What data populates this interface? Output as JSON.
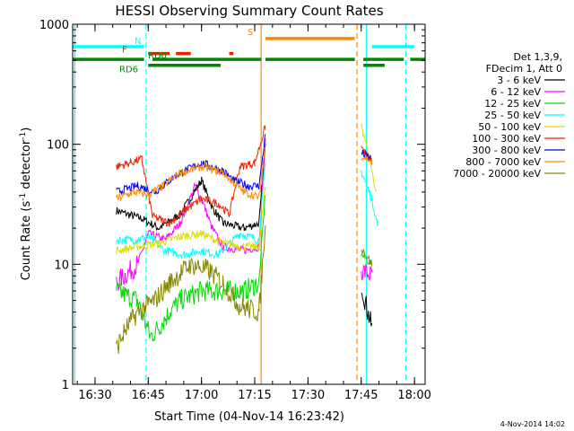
{
  "chart_data": {
    "type": "line",
    "title": "HESSI Observing Summary Count Rates",
    "xlabel": "Start Time (04-Nov-14 16:23:42)",
    "ylabel_main": "Count Rate (s",
    "ylabel_sup1": "-1",
    "ylabel_mid": " detector",
    "ylabel_sup2": "-1",
    "ylabel_end": ")",
    "yscale": "log",
    "ylim": [
      1,
      1000
    ],
    "xlim": [
      16.395,
      18.05
    ],
    "x_ticks": [
      {
        "v": 16.5,
        "label": "16:30"
      },
      {
        "v": 16.75,
        "label": "16:45"
      },
      {
        "v": 17.0,
        "label": "17:00"
      },
      {
        "v": 17.25,
        "label": "17:15"
      },
      {
        "v": 17.5,
        "label": "17:30"
      },
      {
        "v": 17.75,
        "label": "17:45"
      },
      {
        "v": 18.0,
        "label": "18:00"
      }
    ],
    "y_ticks": [
      {
        "v": 1,
        "label": "1"
      },
      {
        "v": 10,
        "label": "10"
      },
      {
        "v": 100,
        "label": "100"
      },
      {
        "v": 1000,
        "label": "1000"
      }
    ],
    "legend_header": [
      "Det 1,3,9,",
      "FDecim 1, Att 0"
    ],
    "legend_position": "right",
    "series": [
      {
        "name": "3 - 6 keV",
        "color": "#000000",
        "points": [
          [
            16.6,
            28
          ],
          [
            16.72,
            24
          ],
          [
            16.8,
            20
          ],
          [
            16.9,
            26
          ],
          [
            17.0,
            50
          ],
          [
            17.05,
            30
          ],
          [
            17.1,
            22
          ],
          [
            17.2,
            20
          ],
          [
            17.27,
            22
          ],
          [
            17.3,
            95
          ],
          [
            17.75,
            7
          ],
          [
            17.78,
            4
          ],
          [
            17.8,
            3
          ]
        ]
      },
      {
        "name": "6 - 12 keV",
        "color": "#ff00ff",
        "points": [
          [
            16.6,
            7
          ],
          [
            16.7,
            10
          ],
          [
            16.75,
            18
          ],
          [
            16.83,
            16
          ],
          [
            16.9,
            22
          ],
          [
            16.97,
            45
          ],
          [
            17.0,
            35
          ],
          [
            17.05,
            20
          ],
          [
            17.1,
            14
          ],
          [
            17.2,
            13
          ],
          [
            17.27,
            14
          ],
          [
            17.3,
            110
          ],
          [
            17.75,
            9
          ],
          [
            17.8,
            8
          ]
        ]
      },
      {
        "name": "12 - 25 keV",
        "color": "#00dd00",
        "points": [
          [
            16.6,
            6
          ],
          [
            16.7,
            5
          ],
          [
            16.76,
            2.5
          ],
          [
            16.8,
            3
          ],
          [
            16.85,
            4
          ],
          [
            16.9,
            5
          ],
          [
            17.0,
            6
          ],
          [
            17.1,
            6
          ],
          [
            17.2,
            6
          ],
          [
            17.27,
            7
          ],
          [
            17.3,
            40
          ],
          [
            17.75,
            12
          ],
          [
            17.8,
            10
          ]
        ]
      },
      {
        "name": "25 - 50 keV",
        "color": "#00ffff",
        "points": [
          [
            16.6,
            16
          ],
          [
            16.7,
            16
          ],
          [
            16.75,
            17
          ],
          [
            16.83,
            13
          ],
          [
            16.92,
            12
          ],
          [
            17.0,
            13
          ],
          [
            17.08,
            12
          ],
          [
            17.18,
            18
          ],
          [
            17.27,
            16
          ],
          [
            17.3,
            70
          ],
          [
            17.75,
            60
          ],
          [
            17.8,
            35
          ],
          [
            17.83,
            20
          ]
        ]
      },
      {
        "name": "50 - 100 keV",
        "color": "#dddd00",
        "points": [
          [
            16.6,
            13
          ],
          [
            16.7,
            14
          ],
          [
            16.8,
            15
          ],
          [
            16.9,
            17
          ],
          [
            17.0,
            18
          ],
          [
            17.1,
            15
          ],
          [
            17.2,
            14
          ],
          [
            17.27,
            14
          ],
          [
            17.3,
            45
          ],
          [
            17.75,
            150
          ],
          [
            17.78,
            90
          ],
          [
            17.82,
            40
          ]
        ]
      },
      {
        "name": "100 - 300 keV",
        "color": "#ee2200",
        "points": [
          [
            16.6,
            65
          ],
          [
            16.72,
            75
          ],
          [
            16.77,
            25
          ],
          [
            16.85,
            22
          ],
          [
            16.92,
            28
          ],
          [
            17.0,
            35
          ],
          [
            17.08,
            32
          ],
          [
            17.13,
            26
          ],
          [
            17.18,
            65
          ],
          [
            17.25,
            70
          ],
          [
            17.3,
            140
          ],
          [
            17.75,
            95
          ],
          [
            17.8,
            70
          ]
        ]
      },
      {
        "name": "300 - 800 keV",
        "color": "#0000ee",
        "points": [
          [
            16.6,
            40
          ],
          [
            16.7,
            45
          ],
          [
            16.78,
            40
          ],
          [
            16.88,
            55
          ],
          [
            17.0,
            70
          ],
          [
            17.1,
            60
          ],
          [
            17.15,
            50
          ],
          [
            17.22,
            45
          ],
          [
            17.27,
            45
          ],
          [
            17.3,
            120
          ],
          [
            17.75,
            85
          ],
          [
            17.8,
            75
          ]
        ]
      },
      {
        "name": "800 - 7000 keV",
        "color": "#ff8800",
        "points": [
          [
            16.6,
            35
          ],
          [
            16.68,
            40
          ],
          [
            16.75,
            38
          ],
          [
            16.82,
            45
          ],
          [
            16.9,
            58
          ],
          [
            17.0,
            65
          ],
          [
            17.1,
            58
          ],
          [
            17.15,
            48
          ],
          [
            17.2,
            40
          ],
          [
            17.27,
            36
          ],
          [
            17.3,
            100
          ],
          [
            17.75,
            80
          ],
          [
            17.8,
            72
          ]
        ]
      },
      {
        "name": "7000 - 20000 keV",
        "color": "#888800",
        "points": [
          [
            16.6,
            2
          ],
          [
            16.65,
            3
          ],
          [
            16.7,
            4
          ],
          [
            16.78,
            5
          ],
          [
            16.85,
            7
          ],
          [
            16.95,
            10
          ],
          [
            17.03,
            9
          ],
          [
            17.1,
            7
          ],
          [
            17.18,
            4.5
          ],
          [
            17.27,
            4
          ],
          [
            17.3,
            20
          ],
          [
            17.75,
            14
          ],
          [
            17.8,
            10
          ]
        ]
      }
    ],
    "flags": [
      {
        "label": "N",
        "color": "#00ffff",
        "y": 650,
        "segments": [
          [
            16.395,
            16.73
          ],
          [
            17.8,
            18.0
          ]
        ]
      },
      {
        "label": "F",
        "color": "#ee2200",
        "y": 570,
        "segments": [
          [
            16.75,
            16.85
          ],
          [
            16.88,
            16.95
          ],
          [
            17.13,
            17.15
          ]
        ]
      },
      {
        "label": "S",
        "color": "#ff8800",
        "y": 760,
        "segments": [
          [
            17.3,
            17.72
          ]
        ]
      },
      {
        "label": "RD0",
        "color": "#008800",
        "y": 510,
        "segments": [
          [
            16.395,
            16.73
          ],
          [
            16.77,
            17.28
          ],
          [
            17.3,
            17.72
          ],
          [
            17.76,
            17.95
          ],
          [
            17.98,
            18.05
          ]
        ]
      },
      {
        "label": "RD6",
        "color": "#008800",
        "y": 455,
        "segments": [
          [
            16.75,
            17.09
          ],
          [
            17.76,
            17.86
          ]
        ]
      }
    ],
    "vlines": [
      {
        "x": 16.405,
        "color": "#00ffff",
        "dash": false
      },
      {
        "x": 16.74,
        "color": "#00ffff",
        "dash": true
      },
      {
        "x": 17.28,
        "color": "#ff8800",
        "dash": false
      },
      {
        "x": 17.73,
        "color": "#ff8800",
        "dash": true
      },
      {
        "x": 17.775,
        "color": "#00ffff",
        "dash": false
      },
      {
        "x": 17.96,
        "color": "#00ffff",
        "dash": true
      }
    ],
    "footer": "4-Nov-2014 14:02"
  }
}
